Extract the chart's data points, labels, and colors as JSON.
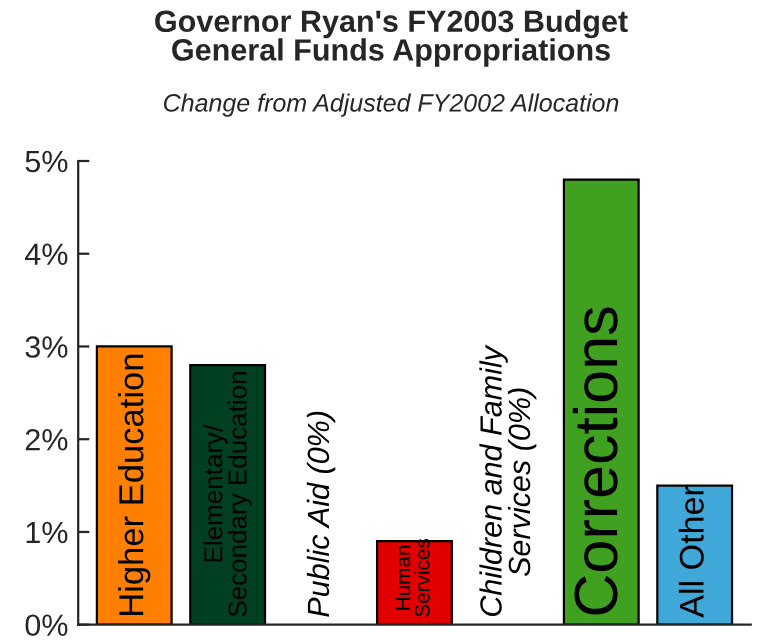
{
  "chart_data": {
    "type": "bar",
    "title": "Governor Ryan's FY2003 Budget\nGeneral Funds Appropriations",
    "subtitle": "Change from Adjusted FY2002 Allocation",
    "categories": [
      "Higher Education",
      "Elementary/\nSecondary Education",
      "Public Aid (0%)",
      "Human\nServices",
      "Children and Family\nServices (0%)",
      "Corrections",
      "All Other"
    ],
    "values": [
      3.0,
      2.8,
      0,
      0.9,
      0,
      4.8,
      1.5
    ],
    "colors": [
      "#ff8000",
      "#004020",
      null,
      "#e00000",
      null,
      "#40a020",
      "#40a8d8"
    ],
    "ylim": [
      0,
      5
    ],
    "yticks": [
      {
        "value": 0,
        "label": "0%"
      },
      {
        "value": 1,
        "label": "1%"
      },
      {
        "value": 2,
        "label": "2%"
      },
      {
        "value": 3,
        "label": "3%"
      },
      {
        "value": 4,
        "label": "4%"
      },
      {
        "value": 5,
        "label": "5%"
      }
    ],
    "grid": false
  }
}
